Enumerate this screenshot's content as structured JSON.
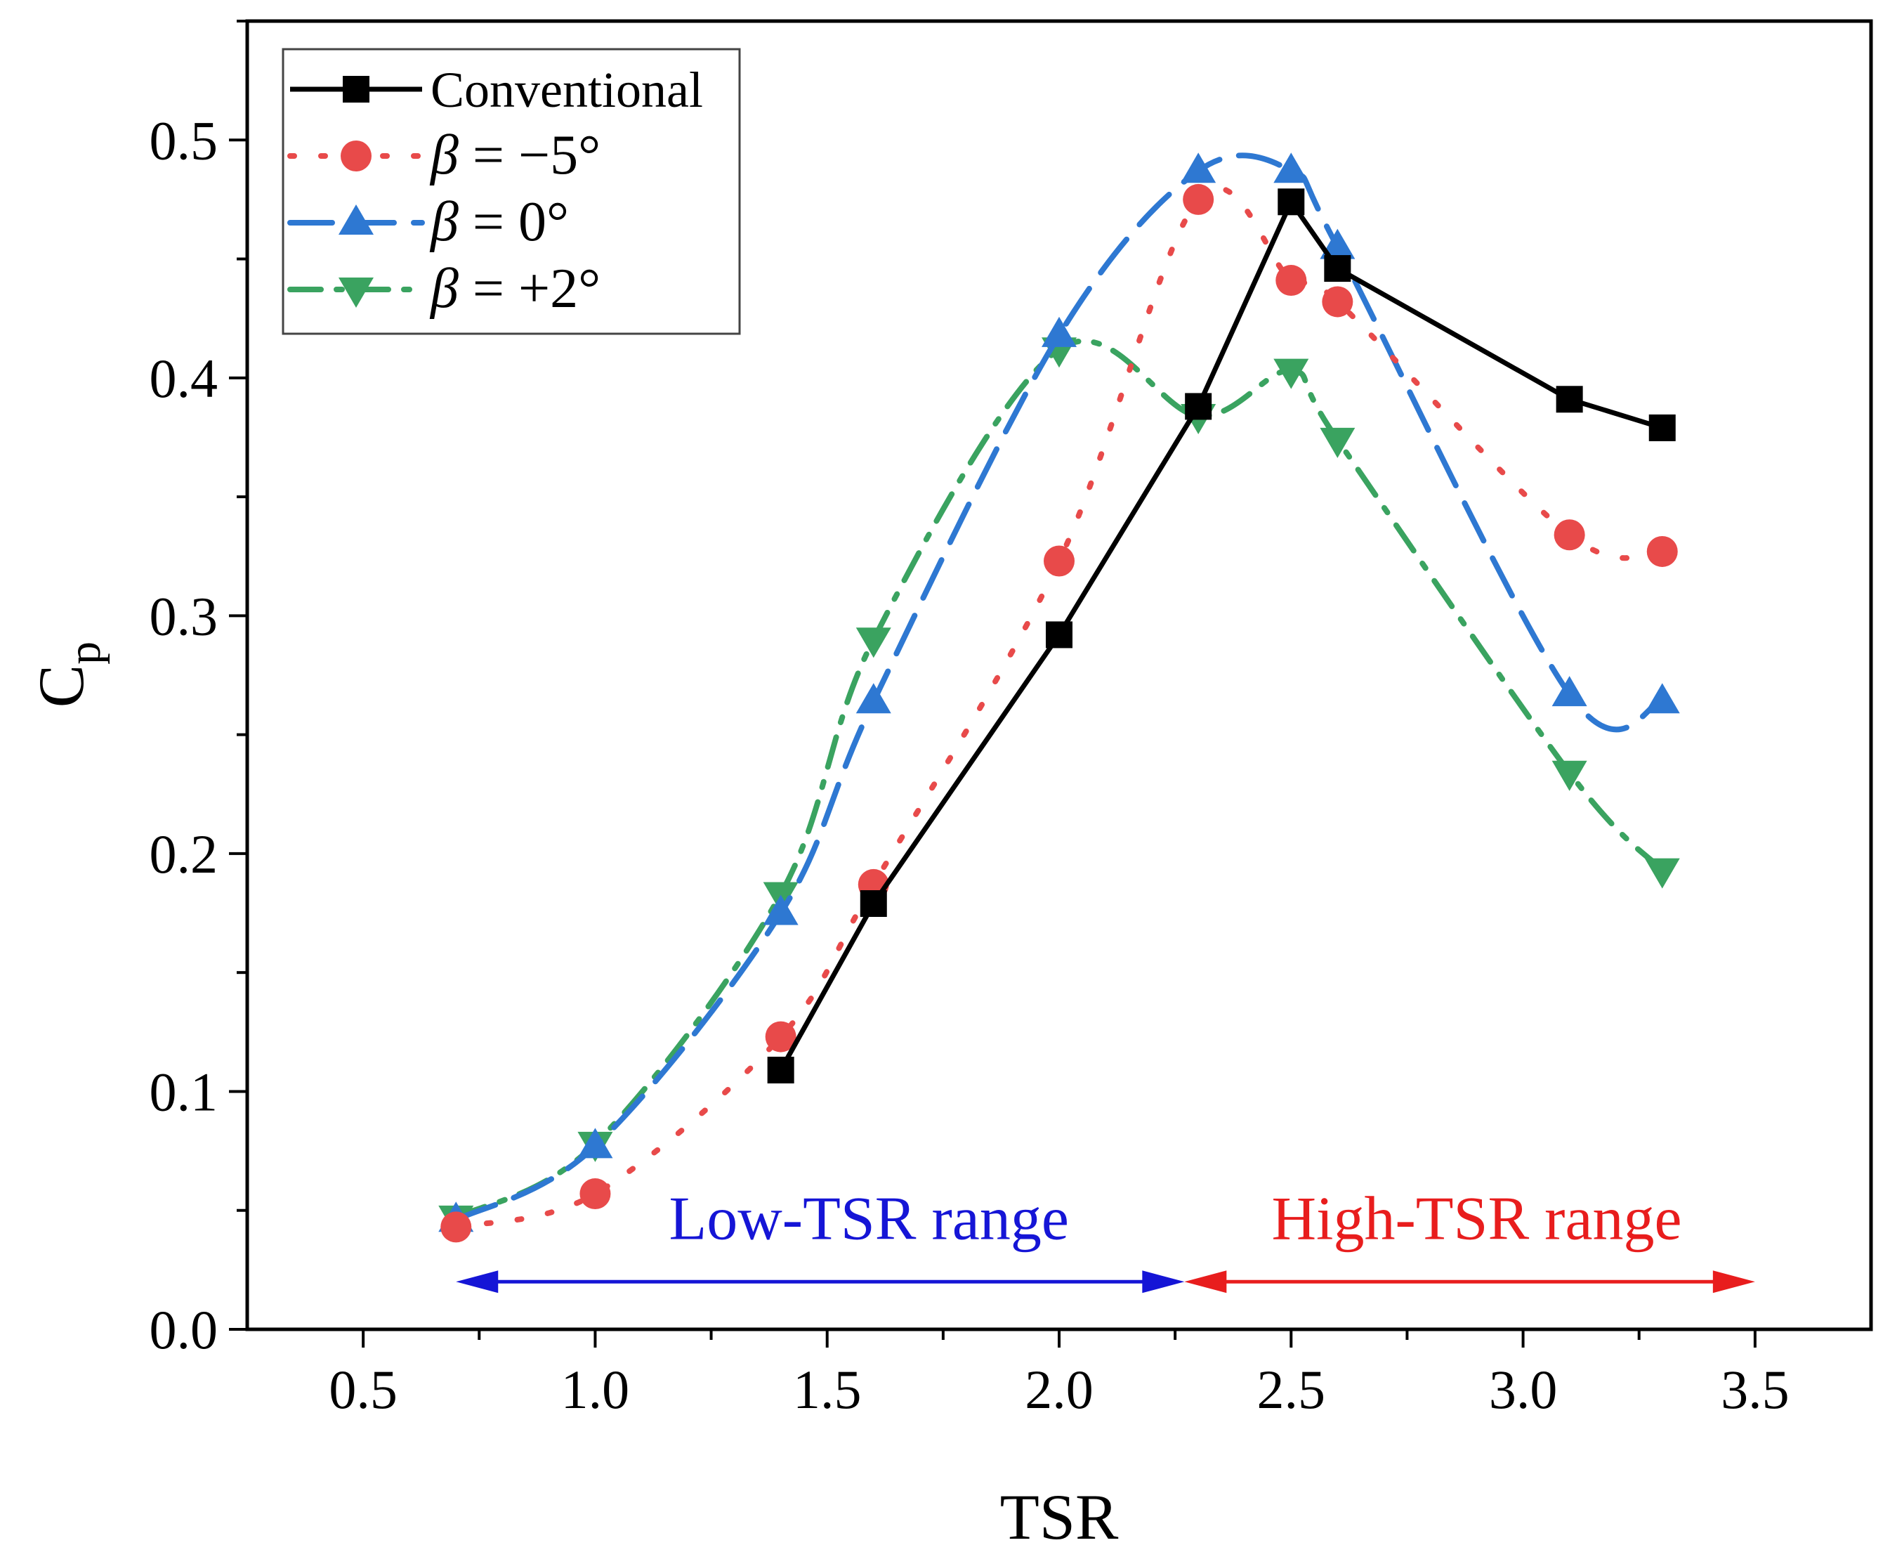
{
  "chart_data": {
    "type": "line",
    "title": "",
    "xlabel": "TSR",
    "ylabel_main": "C",
    "ylabel_sub": "p",
    "xlim": [
      0.25,
      3.75
    ],
    "ylim": [
      0.0,
      0.55
    ],
    "xticks": [
      0.5,
      1.0,
      1.5,
      2.0,
      2.5,
      3.0,
      3.5
    ],
    "xtick_labels": [
      "0.5",
      "1.0",
      "1.5",
      "2.0",
      "2.5",
      "3.0",
      "3.5"
    ],
    "yticks": [
      0.0,
      0.1,
      0.2,
      0.3,
      0.4,
      0.5
    ],
    "ytick_labels": [
      "0.0",
      "0.1",
      "0.2",
      "0.3",
      "0.4",
      "0.5"
    ],
    "legend_position": "top-left",
    "series": [
      {
        "name": "Conventional",
        "legend_beta": "",
        "legend_rest": "Conventional",
        "color": "#000000",
        "marker": "square",
        "dash": "",
        "x": [
          1.4,
          1.6,
          2.0,
          2.3,
          2.5,
          2.6,
          3.1,
          3.3
        ],
        "y": [
          0.109,
          0.179,
          0.292,
          0.388,
          0.474,
          0.446,
          0.391,
          0.379
        ]
      },
      {
        "name": "β = −5°",
        "legend_beta": "β",
        "legend_rest": " = −5°",
        "color": "#e84a4a",
        "marker": "circle",
        "dash": "6 38",
        "x": [
          0.7,
          1.0,
          1.4,
          1.6,
          2.0,
          2.3,
          2.5,
          2.6,
          3.1,
          3.3
        ],
        "y": [
          0.043,
          0.057,
          0.123,
          0.187,
          0.323,
          0.475,
          0.441,
          0.432,
          0.334,
          0.327
        ]
      },
      {
        "name": "β = 0°",
        "legend_beta": "β",
        "legend_rest": " = 0°",
        "color": "#2e78d2",
        "marker": "triangle-up",
        "dash": "60 28",
        "x": [
          0.7,
          1.0,
          1.4,
          1.6,
          2.0,
          2.3,
          2.5,
          2.6,
          3.1,
          3.3
        ],
        "y": [
          0.046,
          0.077,
          0.175,
          0.264,
          0.418,
          0.487,
          0.487,
          0.455,
          0.267,
          0.264
        ]
      },
      {
        "name": "β = +2°",
        "legend_beta": "β",
        "legend_rest": " = +2°",
        "color": "#3aa360",
        "marker": "triangle-down",
        "dash": "44 22 8 22",
        "x": [
          0.7,
          1.0,
          1.4,
          1.6,
          2.0,
          2.3,
          2.5,
          2.6,
          3.1,
          3.3
        ],
        "y": [
          0.047,
          0.078,
          0.183,
          0.29,
          0.412,
          0.384,
          0.403,
          0.374,
          0.234,
          0.193
        ]
      }
    ],
    "annotations": [
      {
        "text": "Low-TSR range",
        "color": "#1515d6",
        "x_from": 0.7,
        "x_to": 2.27,
        "y": 0.02,
        "label_x": 1.59,
        "label_y": 0.038
      },
      {
        "text": "High-TSR range",
        "color": "#e81d1d",
        "x_from": 2.27,
        "x_to": 3.5,
        "y": 0.02,
        "label_x": 2.9,
        "label_y": 0.038
      }
    ]
  }
}
